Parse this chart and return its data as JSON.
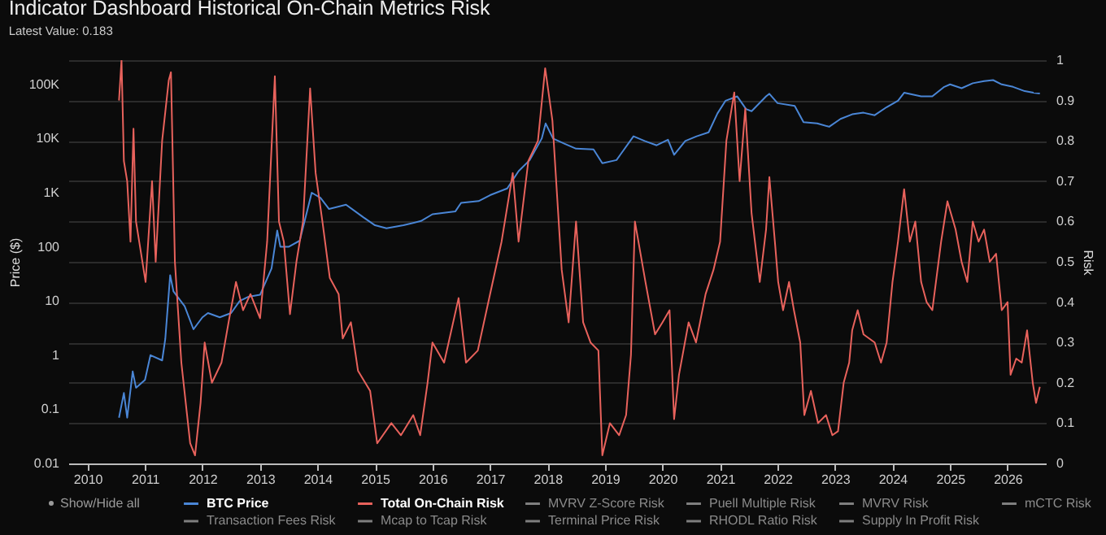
{
  "chart_data": {
    "type": "line",
    "title": "Indicator Dashboard Historical On-Chain Metrics Risk",
    "subtitle": "Latest Value: 0.183",
    "ylabel": "Price ($)",
    "y2label": "Risk",
    "annotations": [
      "Show/Hide all"
    ],
    "xlim": [
      "2009-09",
      "2026-09"
    ],
    "xticks": [
      "2010",
      "2011",
      "2012",
      "2013",
      "2014",
      "2015",
      "2016",
      "2017",
      "2018",
      "2019",
      "2020",
      "2021",
      "2022",
      "2023",
      "2024",
      "2025",
      "2026"
    ],
    "ylim": [
      0.01,
      280000
    ],
    "yticks": [
      0.01,
      0.1,
      1,
      10,
      100,
      {
        "value": 1000,
        "label": "1K"
      },
      {
        "value": 10000,
        "label": "10K"
      },
      {
        "value": 100000,
        "label": "100K"
      }
    ],
    "y2lim": [
      0,
      1
    ],
    "y2ticks": [
      0,
      0.1,
      0.2,
      0.3,
      0.4,
      0.5,
      0.6,
      0.7,
      0.8,
      0.9,
      1
    ],
    "log": "y",
    "grid": true,
    "legend": "bottom",
    "series": [
      {
        "name": "BTC Price",
        "color": "#4a86d6",
        "x": [
          "2010-07-20",
          "2010-08-20",
          "2010-09-10",
          "2010-10-15",
          "2010-11-05",
          "2011-01-01",
          "2011-02-05",
          "2011-04-20",
          "2011-05-10",
          "2011-06-10",
          "2011-07-01",
          "2011-09-10",
          "2011-11-05",
          "2012-01-01",
          "2012-02-05",
          "2012-04-20",
          "2012-07-01",
          "2012-08-25",
          "2012-10-20",
          "2013-01-01",
          "2013-03-15",
          "2013-04-20",
          "2013-05-10",
          "2013-07-01",
          "2013-09-10",
          "2013-11-25",
          "2014-01-20",
          "2014-03-15",
          "2014-07-01",
          "2014-10-20",
          "2015-01-01",
          "2015-03-15",
          "2015-07-01",
          "2015-10-20",
          "2016-01-01",
          "2016-05-25",
          "2016-07-01",
          "2016-10-20",
          "2017-01-01",
          "2017-04-20",
          "2017-07-01",
          "2017-09-10",
          "2017-11-25",
          "2017-12-20",
          "2018-02-05",
          "2018-04-20",
          "2018-07-01",
          "2018-10-20",
          "2018-12-15",
          "2019-03-15",
          "2019-07-01",
          "2019-09-10",
          "2019-11-25",
          "2020-02-05",
          "2020-03-15",
          "2020-05-25",
          "2020-08-05",
          "2020-10-20",
          "2020-12-15",
          "2021-02-05",
          "2021-04-20",
          "2021-06-15",
          "2021-07-20",
          "2021-10-20",
          "2021-11-10",
          "2022-01-01",
          "2022-04-20",
          "2022-06-15",
          "2022-09-10",
          "2022-11-25",
          "2023-02-05",
          "2023-04-20",
          "2023-07-01",
          "2023-09-10",
          "2023-11-25",
          "2024-02-05",
          "2024-03-15",
          "2024-07-01",
          "2024-09-10",
          "2024-11-25",
          "2025-01-01",
          "2025-03-15",
          "2025-05-25",
          "2025-08-05",
          "2025-10-01",
          "2025-11-25",
          "2026-02-05",
          "2026-04-20",
          "2026-06-15",
          "2026-07-25"
        ],
        "values": [
          0.07,
          0.2,
          0.07,
          0.5,
          0.25,
          0.35,
          1,
          0.8,
          2,
          30,
          15,
          8,
          3,
          5,
          6,
          5,
          6,
          10,
          12,
          13,
          40,
          200,
          100,
          100,
          130,
          1000,
          800,
          500,
          600,
          350,
          250,
          220,
          250,
          300,
          400,
          450,
          650,
          700,
          900,
          1200,
          2500,
          4000,
          10000,
          19000,
          10000,
          8000,
          6500,
          6300,
          3500,
          4000,
          11000,
          9000,
          7500,
          9500,
          5000,
          9000,
          11000,
          13000,
          29000,
          50000,
          60000,
          35000,
          32000,
          60000,
          67000,
          45000,
          40000,
          20000,
          19000,
          16500,
          23000,
          28000,
          30000,
          27000,
          38000,
          50000,
          70000,
          60000,
          60000,
          90000,
          100000,
          85000,
          105000,
          115000,
          120000,
          100000,
          90000,
          75000,
          70000,
          68000
        ]
      },
      {
        "name": "Total On-Chain Risk",
        "color": "#e8625c",
        "axis": "y2",
        "x": [
          "2010-07-20",
          "2010-08-05",
          "2010-08-20",
          "2010-09-10",
          "2010-10-01",
          "2010-10-20",
          "2010-11-05",
          "2011-01-05",
          "2011-02-15",
          "2011-03-10",
          "2011-04-20",
          "2011-06-01",
          "2011-06-15",
          "2011-07-10",
          "2011-08-20",
          "2011-10-15",
          "2011-11-15",
          "2011-12-20",
          "2012-01-15",
          "2012-03-01",
          "2012-05-01",
          "2012-06-15",
          "2012-08-01",
          "2012-09-15",
          "2012-11-01",
          "2013-01-01",
          "2013-02-15",
          "2013-04-05",
          "2013-05-01",
          "2013-06-01",
          "2013-07-10",
          "2013-08-20",
          "2013-10-01",
          "2013-11-15",
          "2013-12-20",
          "2014-02-01",
          "2014-03-20",
          "2014-05-15",
          "2014-06-10",
          "2014-08-01",
          "2014-09-15",
          "2014-12-01",
          "2015-01-15",
          "2015-04-15",
          "2015-06-15",
          "2015-09-01",
          "2015-10-15",
          "2015-12-01",
          "2016-01-01",
          "2016-03-15",
          "2016-06-15",
          "2016-08-01",
          "2016-10-15",
          "2017-01-01",
          "2017-03-15",
          "2017-05-25",
          "2017-07-01",
          "2017-09-01",
          "2017-11-01",
          "2017-12-17",
          "2018-02-01",
          "2018-04-01",
          "2018-05-15",
          "2018-07-01",
          "2018-08-15",
          "2018-10-01",
          "2018-11-20",
          "2018-12-15",
          "2019-02-01",
          "2019-04-01",
          "2019-05-15",
          "2019-06-15",
          "2019-07-10",
          "2019-09-15",
          "2019-11-15",
          "2020-01-01",
          "2020-02-15",
          "2020-03-15",
          "2020-04-15",
          "2020-06-15",
          "2020-08-01",
          "2020-10-01",
          "2020-11-20",
          "2021-01-01",
          "2021-02-10",
          "2021-04-01",
          "2021-05-05",
          "2021-06-10",
          "2021-07-20",
          "2021-09-10",
          "2021-10-20",
          "2021-11-10",
          "2021-12-15",
          "2022-01-05",
          "2022-02-05",
          "2022-03-15",
          "2022-04-15",
          "2022-05-25",
          "2022-06-20",
          "2022-08-01",
          "2022-09-15",
          "2022-11-05",
          "2022-12-15",
          "2023-01-20",
          "2023-02-25",
          "2023-04-01",
          "2023-04-20",
          "2023-05-25",
          "2023-07-01",
          "2023-09-10",
          "2023-10-20",
          "2023-11-25",
          "2024-01-01",
          "2024-02-05",
          "2024-03-15",
          "2024-04-20",
          "2024-05-25",
          "2024-07-01",
          "2024-08-05",
          "2024-09-10",
          "2024-11-05",
          "2024-12-15",
          "2025-02-05",
          "2025-03-15",
          "2025-04-20",
          "2025-05-25",
          "2025-07-01",
          "2025-08-05",
          "2025-09-10",
          "2025-10-20",
          "2025-11-25",
          "2026-01-01",
          "2026-01-20",
          "2026-02-25",
          "2026-04-01",
          "2026-05-05",
          "2026-06-10",
          "2026-07-01",
          "2026-07-25"
        ],
        "values": [
          0.9,
          1.0,
          0.75,
          0.7,
          0.55,
          0.83,
          0.6,
          0.45,
          0.7,
          0.5,
          0.8,
          0.95,
          0.97,
          0.5,
          0.25,
          0.05,
          0.02,
          0.15,
          0.3,
          0.2,
          0.25,
          0.35,
          0.45,
          0.38,
          0.42,
          0.36,
          0.55,
          0.96,
          0.6,
          0.55,
          0.37,
          0.5,
          0.6,
          0.93,
          0.72,
          0.6,
          0.46,
          0.42,
          0.31,
          0.35,
          0.23,
          0.18,
          0.05,
          0.1,
          0.07,
          0.12,
          0.07,
          0.2,
          0.3,
          0.25,
          0.41,
          0.25,
          0.28,
          0.42,
          0.55,
          0.72,
          0.55,
          0.75,
          0.8,
          0.98,
          0.85,
          0.48,
          0.35,
          0.6,
          0.35,
          0.3,
          0.28,
          0.02,
          0.1,
          0.07,
          0.12,
          0.27,
          0.6,
          0.45,
          0.32,
          0.35,
          0.38,
          0.11,
          0.22,
          0.35,
          0.3,
          0.42,
          0.48,
          0.55,
          0.8,
          0.92,
          0.7,
          0.88,
          0.62,
          0.45,
          0.58,
          0.71,
          0.55,
          0.45,
          0.38,
          0.45,
          0.38,
          0.3,
          0.12,
          0.18,
          0.1,
          0.12,
          0.07,
          0.08,
          0.2,
          0.25,
          0.33,
          0.38,
          0.32,
          0.3,
          0.25,
          0.3,
          0.45,
          0.55,
          0.68,
          0.55,
          0.6,
          0.45,
          0.4,
          0.38,
          0.55,
          0.65,
          0.58,
          0.5,
          0.45,
          0.6,
          0.55,
          0.58,
          0.5,
          0.52,
          0.38,
          0.4,
          0.22,
          0.26,
          0.25,
          0.33,
          0.2,
          0.15,
          0.19
        ]
      },
      {
        "name": "MVRV Z-Score Risk",
        "color": "#7f7f7f"
      },
      {
        "name": "Puell Multiple Risk",
        "color": "#7f7f7f"
      },
      {
        "name": "MVRV Risk",
        "color": "#7f7f7f"
      },
      {
        "name": "mCTC Risk",
        "color": "#7f7f7f"
      },
      {
        "name": "Transaction Fees Risk",
        "color": "#7f7f7f"
      },
      {
        "name": "Mcap to Tcap Risk",
        "color": "#7f7f7f"
      },
      {
        "name": "Terminal Price Risk",
        "color": "#7f7f7f"
      },
      {
        "name": "RHODL Ratio Risk",
        "color": "#7f7f7f"
      },
      {
        "name": "Supply In Profit Risk",
        "color": "#7f7f7f"
      }
    ]
  }
}
